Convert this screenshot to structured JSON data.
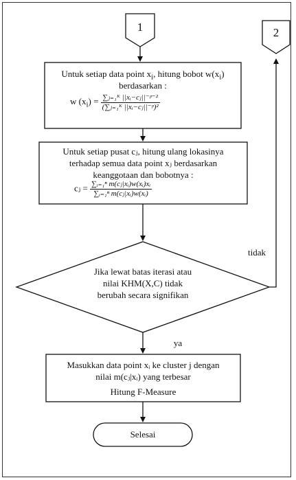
{
  "connectors": {
    "in_label": "1",
    "out_label": "2"
  },
  "box1": {
    "line1_pre": "Untuk setiap data point x",
    "line1_sub": "i",
    "line1_mid": ", hitung bobot w(x",
    "line1_sub2": "i",
    "line1_end": ")",
    "line2": "berdasarkan :",
    "eq_lhs": "w (x",
    "eq_lhs_sub": "i",
    "eq_lhs_end": ") =",
    "eq_num": "∑ⱼ₌₁ᴷ ||xᵢ−cⱼ||⁻ᵖ⁻²",
    "eq_den": "(∑ⱼ₌₁ᴷ ||xᵢ−cⱼ||⁻ᵖ)²"
  },
  "box2": {
    "line1": "Untuk setiap pusat cⱼ, hitung ulang lokasinya",
    "line2": "terhadap semua data point xⱼ berdasarkan",
    "line3": "keanggotaan dan bobotnya :",
    "eq_lhs": "cⱼ =",
    "eq_num": "∑ᵢ₌₁ⁿ m(cⱼ|xᵢ)w(xᵢ)xᵢ",
    "eq_den": "∑ᵢ₌₁ⁿ m(cⱼ|xᵢ)w(xᵢ)"
  },
  "decision": {
    "line1": "Jika lewat batas iterasi  atau",
    "line2": "nilai KHM(X,C) tidak",
    "line3": "berubah secara signifikan",
    "no_label": "tidak",
    "yes_label": "ya"
  },
  "box3": {
    "line1": "Masukkan data point xᵢ ke cluster j dengan",
    "line2": "nilai m(cⱼ|xᵢ) yang terbesar",
    "line3": "Hitung F-Measure"
  },
  "terminal": {
    "label": "Selesai"
  }
}
